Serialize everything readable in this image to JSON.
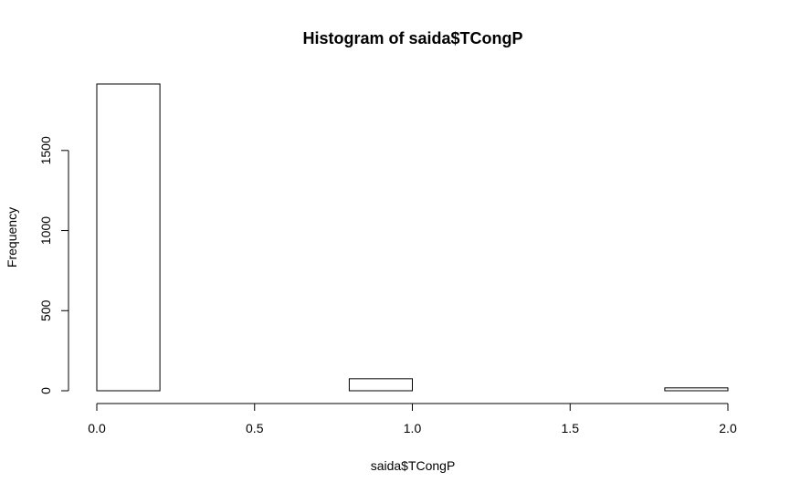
{
  "chart_data": {
    "type": "bar",
    "title": "Histogram of saida$TCongP",
    "xlabel": "saida$TCongP",
    "ylabel": "Frequency",
    "bins": [
      {
        "x0": 0.0,
        "x1": 0.2,
        "count": 1915
      },
      {
        "x0": 0.2,
        "x1": 0.4,
        "count": 0
      },
      {
        "x0": 0.4,
        "x1": 0.6,
        "count": 0
      },
      {
        "x0": 0.6,
        "x1": 0.8,
        "count": 0
      },
      {
        "x0": 0.8,
        "x1": 1.0,
        "count": 75
      },
      {
        "x0": 1.0,
        "x1": 1.2,
        "count": 0
      },
      {
        "x0": 1.2,
        "x1": 1.4,
        "count": 0
      },
      {
        "x0": 1.4,
        "x1": 1.6,
        "count": 0
      },
      {
        "x0": 1.6,
        "x1": 1.8,
        "count": 0
      },
      {
        "x0": 1.8,
        "x1": 2.0,
        "count": 18
      }
    ],
    "xlim": [
      0.0,
      2.0
    ],
    "ylim": [
      0,
      1915
    ],
    "x_ticks": [
      0.0,
      0.5,
      1.0,
      1.5,
      2.0
    ],
    "x_tick_labels": [
      "0.0",
      "0.5",
      "1.0",
      "1.5",
      "2.0"
    ],
    "y_ticks": [
      0,
      500,
      1000,
      1500
    ],
    "y_tick_labels": [
      "0",
      "500",
      "1000",
      "1500"
    ],
    "grid": false,
    "legend": "none",
    "colors": {
      "bar_fill": "#ffffff",
      "bar_stroke": "#000000",
      "axis": "#000000"
    }
  }
}
